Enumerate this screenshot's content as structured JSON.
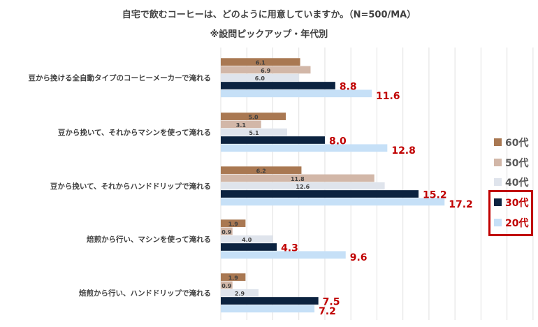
{
  "chart_data": {
    "type": "bar",
    "orientation": "horizontal",
    "title": "自宅で飲むコーヒーは、どのように用意していますか。（N=500/MA）",
    "subtitle": "※設問ピックアップ・年代別",
    "categories": [
      "豆から挽ける全自動タイプのコーヒーメーカーで淹れる",
      "豆から挽いて、それからマシンを使って淹れる",
      "豆から挽いて、それからハンドドリップで淹れる",
      "焙煎から行い、マシンを使って淹れる",
      "焙煎から行い、ハンドドリップで淹れる"
    ],
    "series": [
      {
        "name": "60代",
        "color": "#a97852",
        "labelColor": "#404040",
        "highlight": false,
        "values": [
          6.1,
          5.0,
          6.2,
          1.9,
          1.9
        ]
      },
      {
        "name": "50代",
        "color": "#d2b7a8",
        "labelColor": "#404040",
        "highlight": false,
        "values": [
          6.9,
          3.1,
          11.8,
          0.9,
          0.9
        ]
      },
      {
        "name": "40代",
        "color": "#dfe4ec",
        "labelColor": "#404040",
        "highlight": false,
        "values": [
          6.0,
          5.1,
          12.6,
          4.0,
          2.9
        ]
      },
      {
        "name": "30代",
        "color": "#0c2340",
        "labelColor": "#c00000",
        "highlight": true,
        "values": [
          8.8,
          8.0,
          15.2,
          4.3,
          7.5
        ]
      },
      {
        "name": "20代",
        "color": "#c6e0f7",
        "labelColor": "#c00000",
        "highlight": true,
        "values": [
          11.6,
          12.8,
          17.2,
          9.6,
          7.2
        ]
      }
    ],
    "xlim": [
      0,
      24
    ],
    "grid_step": 2,
    "grid": true,
    "legend": "right",
    "xlabel": "",
    "ylabel": ""
  }
}
